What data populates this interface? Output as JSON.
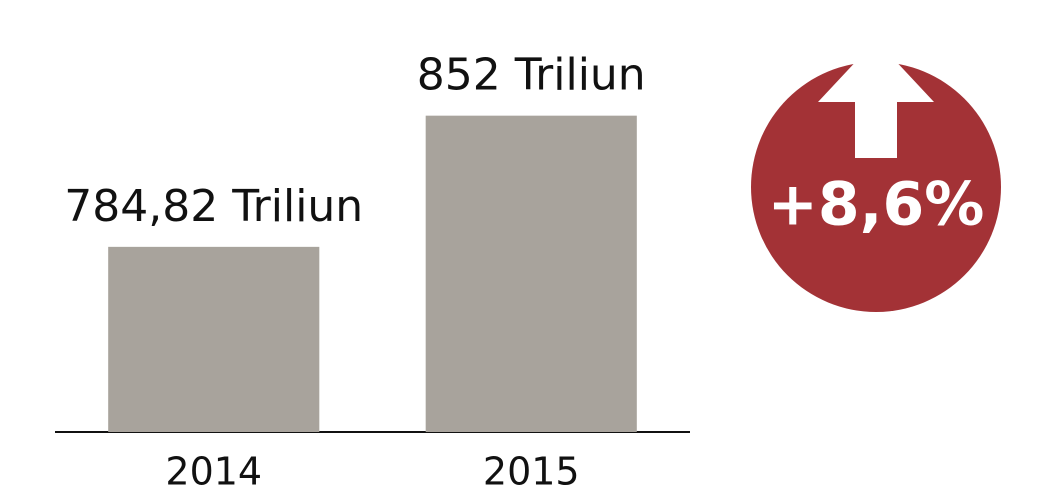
{
  "chart_data": {
    "type": "bar",
    "categories": [
      "2014",
      "2015"
    ],
    "values": [
      784.82,
      852
    ],
    "value_labels": [
      "784,82 Triliun",
      "852 Triliun"
    ],
    "color": "#a8a39c",
    "ylim": [
      690,
      880
    ],
    "annotation": "+8,6%",
    "annotation_color": "#a33236"
  }
}
